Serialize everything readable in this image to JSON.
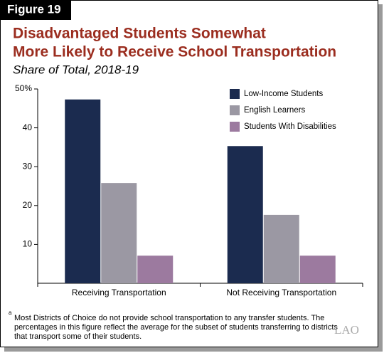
{
  "chart_data": {
    "type": "bar",
    "figure_label": "Figure 19",
    "title": [
      "Disadvantaged Students Somewhat",
      "More Likely to Receive School Transportation"
    ],
    "subtitle": "Share of Total, 2018-19",
    "categories": [
      "Receiving Transportation",
      "Not Receiving Transportation"
    ],
    "series": [
      {
        "name": "Low-Income Students",
        "color": "#1b2b4f",
        "values": [
          47.3,
          35.3
        ]
      },
      {
        "name": "English Learners",
        "color": "#9b98a3",
        "values": [
          25.8,
          17.6
        ]
      },
      {
        "name": "Students With Disabilities",
        "color": "#9c7a9f",
        "values": [
          7.1,
          7.1
        ]
      }
    ],
    "ylim": [
      0,
      50
    ],
    "yticks": [
      10,
      20,
      30,
      40,
      {
        "value": 50,
        "label": "50%"
      }
    ],
    "grid": false,
    "legend": "top-right",
    "footnote_marker": "a",
    "footnote": [
      "Most Districts of Choice do not provide school transportation to any transfer students. The",
      "percentages in this figure reflect the average for the subset of students transferring to districts",
      "that transport some of their students."
    ],
    "logo": "LAO"
  }
}
